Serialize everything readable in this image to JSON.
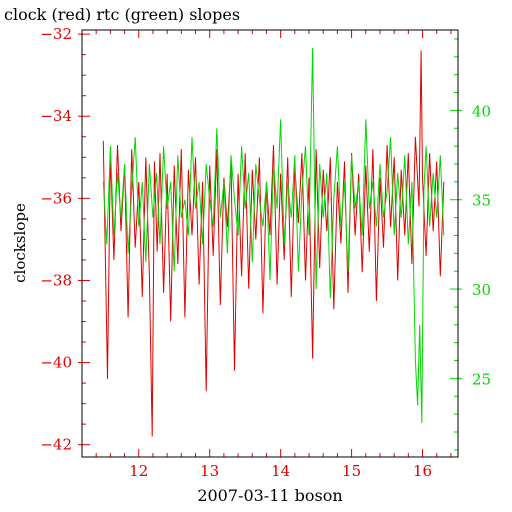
{
  "chart_data": {
    "type": "line",
    "title": "clock (red) rtc (green) slopes",
    "xlabel": "2007-03-11 boson",
    "ylabel": "clockslope",
    "xlim": [
      11.2,
      16.5
    ],
    "x_ticks": [
      12,
      13,
      14,
      15,
      16
    ],
    "x_tick_labels": [
      "12",
      "13",
      "14",
      "15",
      "16"
    ],
    "ylim": [
      -42.3,
      -31.9
    ],
    "y_ticks": [
      -42,
      -40,
      -38,
      -36,
      -34,
      -32
    ],
    "y_tick_labels": [
      "−42",
      "−40",
      "−38",
      "−36",
      "−34",
      "−32"
    ],
    "y2lim": [
      20.6,
      44.5
    ],
    "y2_ticks": [
      25,
      30,
      35,
      40
    ],
    "y2_tick_labels": [
      "25",
      "30",
      "35",
      "40"
    ],
    "grid": false,
    "series": [
      {
        "name": "clock",
        "axis": "left",
        "color": "#e00000",
        "x": [
          11.5,
          11.56,
          11.6,
          11.65,
          11.7,
          11.75,
          11.8,
          11.85,
          11.9,
          11.95,
          12.0,
          12.05,
          12.1,
          12.15,
          12.19,
          12.22,
          12.26,
          12.3,
          12.35,
          12.4,
          12.45,
          12.5,
          12.55,
          12.6,
          12.65,
          12.7,
          12.75,
          12.8,
          12.85,
          12.9,
          12.95,
          13.0,
          13.05,
          13.1,
          13.15,
          13.2,
          13.25,
          13.3,
          13.35,
          13.4,
          13.45,
          13.5,
          13.55,
          13.6,
          13.65,
          13.7,
          13.75,
          13.8,
          13.85,
          13.9,
          13.95,
          14.0,
          14.05,
          14.1,
          14.15,
          14.2,
          14.25,
          14.3,
          14.35,
          14.4,
          14.45,
          14.5,
          14.55,
          14.6,
          14.65,
          14.7,
          14.75,
          14.8,
          14.85,
          14.9,
          14.95,
          15.0,
          15.05,
          15.1,
          15.15,
          15.2,
          15.25,
          15.3,
          15.35,
          15.4,
          15.45,
          15.5,
          15.55,
          15.6,
          15.65,
          15.7,
          15.75,
          15.8,
          15.85,
          15.9,
          15.95,
          15.98,
          16.0,
          16.05,
          16.1,
          16.15,
          16.2,
          16.25,
          16.3
        ],
        "values": [
          -34.6,
          -40.4,
          -34.9,
          -37.5,
          -34.7,
          -36.8,
          -35.2,
          -38.9,
          -34.8,
          -37.2,
          -35.6,
          -38.4,
          -35.0,
          -37.9,
          -41.8,
          -35.1,
          -37.3,
          -34.9,
          -38.3,
          -35.4,
          -39.0,
          -35.2,
          -37.6,
          -34.8,
          -38.9,
          -35.3,
          -36.9,
          -35.0,
          -38.1,
          -35.6,
          -40.7,
          -35.2,
          -37.4,
          -34.8,
          -38.6,
          -35.5,
          -36.7,
          -35.1,
          -40.2,
          -35.4,
          -37.9,
          -34.9,
          -38.2,
          -35.3,
          -37.0,
          -35.0,
          -38.8,
          -35.6,
          -36.9,
          -34.7,
          -38.1,
          -35.4,
          -37.5,
          -35.0,
          -38.4,
          -35.2,
          -36.6,
          -34.9,
          -38.0,
          -35.5,
          -39.9,
          -34.8,
          -37.7,
          -35.3,
          -36.8,
          -35.0,
          -38.7,
          -35.6,
          -37.1,
          -35.1,
          -38.3,
          -34.9,
          -36.9,
          -35.4,
          -37.8,
          -35.2,
          -37.3,
          -34.8,
          -38.5,
          -35.5,
          -37.2,
          -34.7,
          -36.7,
          -35.0,
          -38.0,
          -35.3,
          -36.9,
          -34.9,
          -37.6,
          -34.5,
          -36.2,
          -32.4,
          -35.5,
          -37.4,
          -34.9,
          -36.8,
          -35.1,
          -37.9,
          -35.6
        ]
      },
      {
        "name": "rtc",
        "axis": "right",
        "color": "#00d800",
        "x": [
          11.5,
          11.55,
          11.6,
          11.65,
          11.7,
          11.75,
          11.8,
          11.85,
          11.9,
          11.95,
          12.0,
          12.05,
          12.1,
          12.15,
          12.2,
          12.25,
          12.3,
          12.35,
          12.4,
          12.45,
          12.5,
          12.55,
          12.6,
          12.65,
          12.7,
          12.75,
          12.8,
          12.85,
          12.9,
          12.95,
          13.0,
          13.05,
          13.1,
          13.15,
          13.2,
          13.25,
          13.3,
          13.35,
          13.4,
          13.45,
          13.5,
          13.55,
          13.6,
          13.65,
          13.7,
          13.75,
          13.8,
          13.85,
          13.9,
          13.95,
          14.0,
          14.05,
          14.1,
          14.15,
          14.2,
          14.25,
          14.3,
          14.35,
          14.4,
          14.45,
          14.5,
          14.55,
          14.6,
          14.65,
          14.7,
          14.75,
          14.8,
          14.85,
          14.9,
          14.95,
          15.0,
          15.05,
          15.1,
          15.15,
          15.2,
          15.25,
          15.3,
          15.35,
          15.4,
          15.45,
          15.5,
          15.55,
          15.6,
          15.65,
          15.7,
          15.75,
          15.8,
          15.85,
          15.9,
          15.93,
          15.96,
          15.99,
          16.02,
          16.05,
          16.1,
          16.15,
          16.2,
          16.25,
          16.3
        ],
        "values": [
          36.0,
          32.5,
          38.0,
          33.0,
          36.5,
          34.0,
          37.0,
          32.0,
          35.5,
          38.5,
          33.5,
          36.0,
          31.5,
          37.0,
          34.0,
          36.5,
          32.5,
          38.0,
          34.5,
          36.0,
          31.0,
          37.5,
          34.0,
          35.0,
          33.0,
          38.5,
          34.5,
          36.0,
          32.5,
          37.0,
          35.0,
          33.5,
          39.0,
          34.0,
          36.0,
          32.0,
          37.5,
          35.0,
          33.0,
          38.0,
          34.5,
          36.5,
          31.5,
          37.0,
          35.0,
          33.5,
          36.0,
          30.5,
          37.0,
          34.5,
          39.5,
          32.5,
          36.0,
          34.0,
          37.5,
          31.0,
          35.5,
          38.0,
          33.0,
          43.5,
          30.0,
          37.0,
          34.0,
          36.5,
          29.5,
          35.0,
          38.0,
          33.5,
          36.0,
          31.0,
          37.5,
          34.5,
          36.0,
          33.0,
          39.5,
          34.5,
          36.0,
          33.5,
          37.0,
          34.0,
          35.5,
          38.5,
          33.0,
          36.5,
          34.0,
          37.5,
          32.5,
          36.0,
          26.0,
          23.5,
          28.0,
          22.5,
          35.5,
          38.0,
          33.5,
          36.5,
          34.0,
          37.5,
          33.0
        ]
      }
    ]
  }
}
